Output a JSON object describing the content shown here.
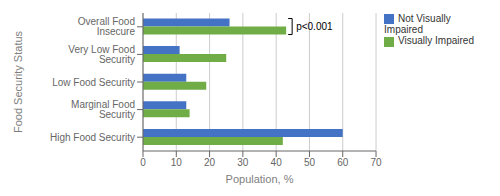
{
  "chart_data": {
    "type": "bar",
    "orientation": "horizontal",
    "categories": [
      "High Food Security",
      "Marginal Food Security",
      "Low Food Security",
      "Very Low Food Security",
      "Overall Food Insecure"
    ],
    "series": [
      {
        "name": "Not Visually\nImpaired",
        "color": "#4472C4",
        "values": [
          60,
          13,
          13,
          11,
          26
        ]
      },
      {
        "name": "Visually Impaired",
        "color": "#70AD47",
        "values": [
          42,
          14,
          19,
          25,
          43
        ]
      }
    ],
    "xlabel": "Population, %",
    "ylabel": "Food Security Status",
    "xlim": [
      0,
      70
    ],
    "xticks": [
      0,
      10,
      20,
      30,
      40,
      50,
      60,
      70
    ],
    "grid": true,
    "legend": "right",
    "annotation": "p<0.001"
  }
}
